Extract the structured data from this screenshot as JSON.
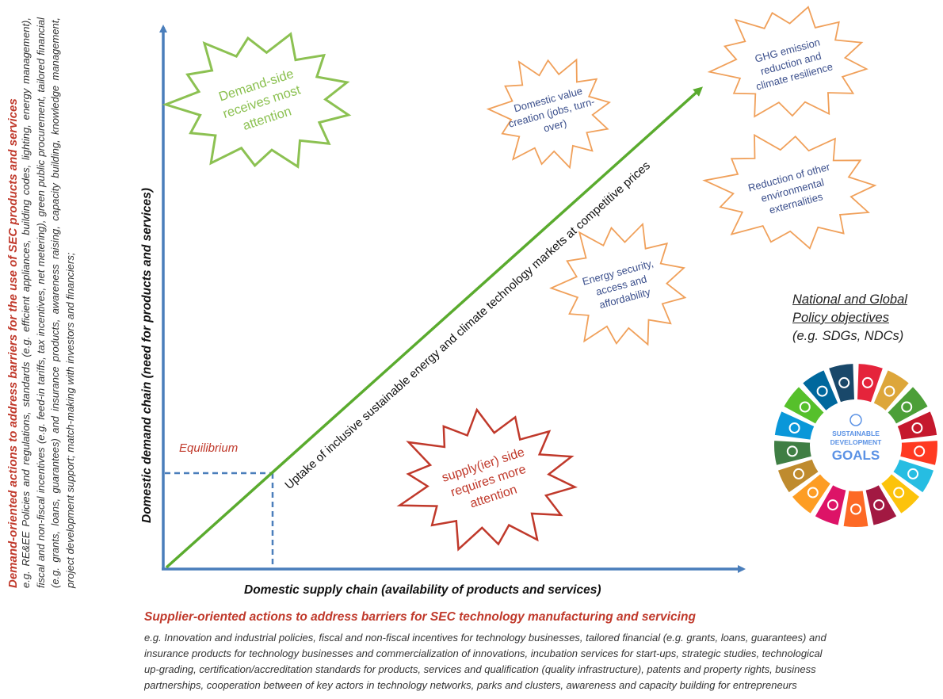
{
  "left_panel": {
    "title": "Demand-oriented actions to address  barriers for the use of SEC products and services",
    "body": "e.g. RE&EE Policies and regulations, standards (e.g. efficient appliances, building codes, lighting, energy management), fiscal and non-fiscal incentives (e.g. feed-in tariffs, tax incentives, net metering), green public procurement, tailored financial (e.g. grants, loans, guarantees) and insurance products, awareness raising, capacity building, knowledge  management, project development support; match-making with investors and financiers;"
  },
  "diagram": {
    "y_axis_label": "Domestic demand chain  (need for products and services)",
    "x_axis_label": "Domestic supply chain (availability of products and services)",
    "diagonal_label": "Uptake of inclusive sustainable energy and climate  technology markets at competitive prices",
    "equilibrium_label": "Equilibrium",
    "demand_burst": [
      "Demand-side",
      "receives most",
      "attention"
    ],
    "supply_burst": [
      "supply(ier) side",
      "requires more",
      "attention"
    ],
    "outcomes": [
      {
        "lines": [
          "Domestic value",
          "creation (jobs, turn-",
          "over)"
        ]
      },
      {
        "lines": [
          "GHG emission",
          "reduction and",
          "climate resilience"
        ]
      },
      {
        "lines": [
          "Reduction of other",
          "environmental",
          "externalities"
        ]
      },
      {
        "lines": [
          "Energy security,",
          "access and",
          "affordability"
        ]
      }
    ],
    "colors": {
      "axis": "#4a7ebb",
      "diagonal": "#5aab2e",
      "demand_burst": "#8cc152",
      "supply_burst": "#c0392b",
      "outcome_burst": "#f0a05a",
      "outcome_text": "#3b4f8c"
    }
  },
  "policy": {
    "line1": "National and Global",
    "line2": "Policy objectives",
    "line3": "(e.g. SDGs, NDCs)"
  },
  "sdg_wheel": {
    "center_lines": [
      "SUSTAINABLE",
      "DEVELOPMENT",
      "GOALS"
    ],
    "colors": [
      "#e5243b",
      "#dda63a",
      "#4c9f38",
      "#c5192d",
      "#ff3a21",
      "#26bde2",
      "#fcc30b",
      "#a21942",
      "#fd6925",
      "#dd1367",
      "#fd9d24",
      "#bf8b2e",
      "#3f7e44",
      "#0a97d9",
      "#56c02b",
      "#00689d",
      "#19486a"
    ]
  },
  "supplier_panel": {
    "title": "Supplier-oriented actions to address barriers for SEC technology manufacturing and servicing",
    "lines": [
      "e.g. Innovation and industrial policies, fiscal and non-fiscal incentives for technology businesses, tailored financial (e.g. grants, loans, guarantees) and",
      "insurance products for technology businesses and commercialization of innovations, incubation services for start-ups, strategic studies, technological",
      "up-grading, certification/accreditation standards for products, services and qualification (quality infrastructure), patents and property rights, business",
      "partnerships, cooperation between of key actors in technology networks, parks and clusters, awareness and capacity building for entrepreneurs"
    ]
  }
}
